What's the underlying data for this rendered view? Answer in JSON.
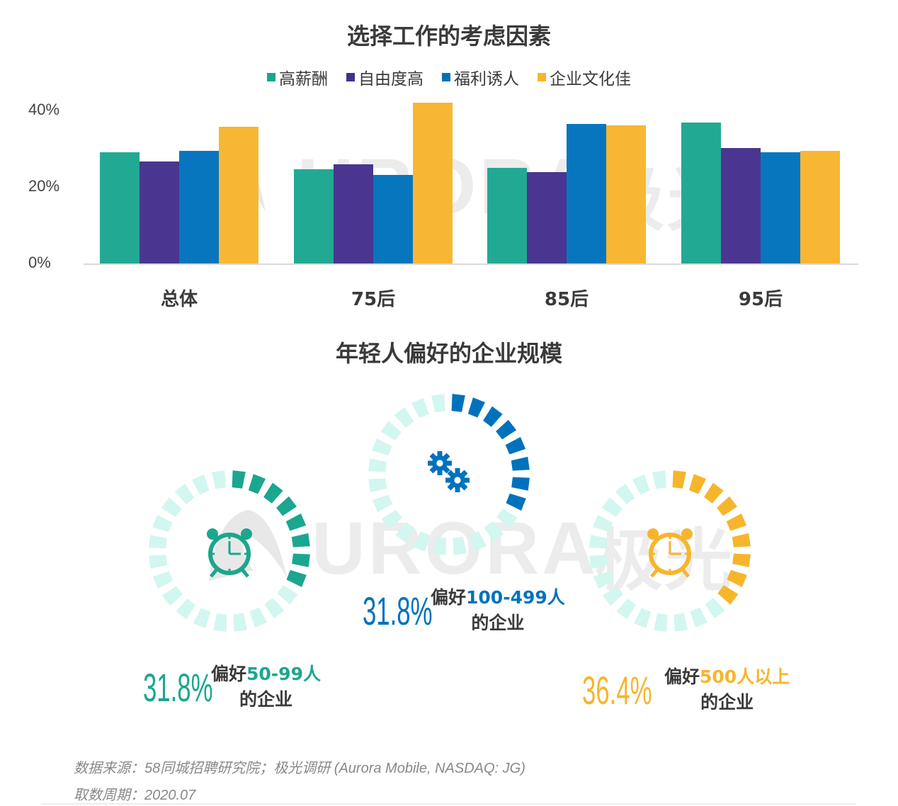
{
  "chart1": {
    "title": "选择工作的考虑因素",
    "legend": [
      {
        "label": "高薪酬",
        "color": "#1ba68f"
      },
      {
        "label": "自由度高",
        "color": "#44308c"
      },
      {
        "label": "福利诱人",
        "color": "#0072bc"
      },
      {
        "label": "企业文化佳",
        "color": "#f7b52c"
      }
    ],
    "yticks": [
      "40%",
      "20%",
      "0%"
    ],
    "categories": [
      "总体",
      "75后",
      "85后",
      "95后"
    ]
  },
  "chart2": {
    "title": "年轻人偏好的企业规模",
    "items": [
      {
        "value": "31.8%",
        "prefix": "偏好",
        "highlight": "50-99人",
        "suffix": "的企业",
        "color": "#1ba68f",
        "icon": "alarm-clock-icon"
      },
      {
        "value": "31.8%",
        "prefix": "偏好",
        "highlight": "100-499人",
        "suffix": "的企业",
        "color": "#0072bc",
        "icon": "gears-icon"
      },
      {
        "value": "36.4%",
        "prefix": "偏好",
        "highlight": "500人以上",
        "suffix": "的企业",
        "color": "#f7b52c",
        "icon": "alarm-clock-icon"
      }
    ]
  },
  "watermark": {
    "text": "URORA",
    "cn": "极光"
  },
  "footer": {
    "source": "数据来源：58同城招聘研究院；极光调研 (Aurora Mobile, NASDAQ: JG)",
    "period": "取数周期：2020.07"
  },
  "chart_data": [
    {
      "type": "bar",
      "title": "选择工作的考虑因素",
      "categories": [
        "总体",
        "75后",
        "85后",
        "95后"
      ],
      "series": [
        {
          "name": "高薪酬",
          "values": [
            29.1,
            24.6,
            25.0,
            36.9
          ]
        },
        {
          "name": "自由度高",
          "values": [
            26.7,
            25.9,
            23.9,
            30.2
          ]
        },
        {
          "name": "福利诱人",
          "values": [
            29.4,
            23.1,
            36.5,
            29.1
          ]
        },
        {
          "name": "企业文化佳",
          "values": [
            35.7,
            42.0,
            36.1,
            29.4
          ]
        }
      ],
      "xlabel": "",
      "ylabel": "",
      "ylim": [
        0,
        46
      ],
      "yticks": [
        "0%",
        "20%",
        "40%"
      ],
      "legend_position": "top",
      "grid": false
    },
    {
      "type": "pie",
      "title": "年轻人偏好的企业规模",
      "categories": [
        "50-99人",
        "100-499人",
        "500人以上"
      ],
      "values": [
        31.8,
        31.8,
        36.4
      ]
    }
  ]
}
